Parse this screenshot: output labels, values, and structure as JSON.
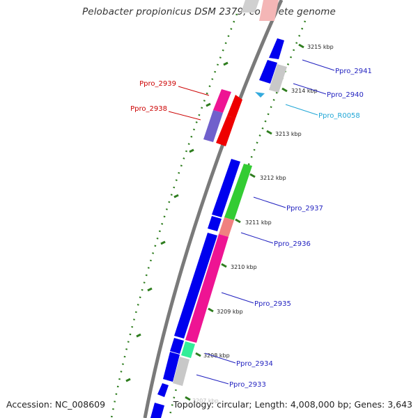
{
  "title": "Pelobacter propionicus DSM 2379, complete genome",
  "footer": {
    "accession": "Accession: NC_008609",
    "summary": "Topology: circular; Length: 4,008,000 bp; Genes: 3,643"
  },
  "colors": {
    "backbone": "#808080",
    "tick": "#2e7d1e",
    "blue": "#0000ee",
    "red": "#ee0000",
    "magenta": "#ee1493",
    "cyan": "#33aadd",
    "label_red": "#cc0000",
    "label_blue": "#1f1fbf",
    "label_cyan": "#1fa6d6"
  },
  "scale_labels": [
    "3215 kbp",
    "3214 kbp",
    "3213 kbp",
    "3212 kbp",
    "3211 kbp",
    "3210 kbp",
    "3209 kbp",
    "3208 kbp",
    "3207 kbp"
  ],
  "gene_labels": [
    "Ppro_2941",
    "Ppro_2940",
    "Ppro_R0058",
    "Ppro_2939",
    "Ppro_2938",
    "Ppro_2937",
    "Ppro_2936",
    "Ppro_2935",
    "Ppro_2934",
    "Ppro_2933"
  ]
}
